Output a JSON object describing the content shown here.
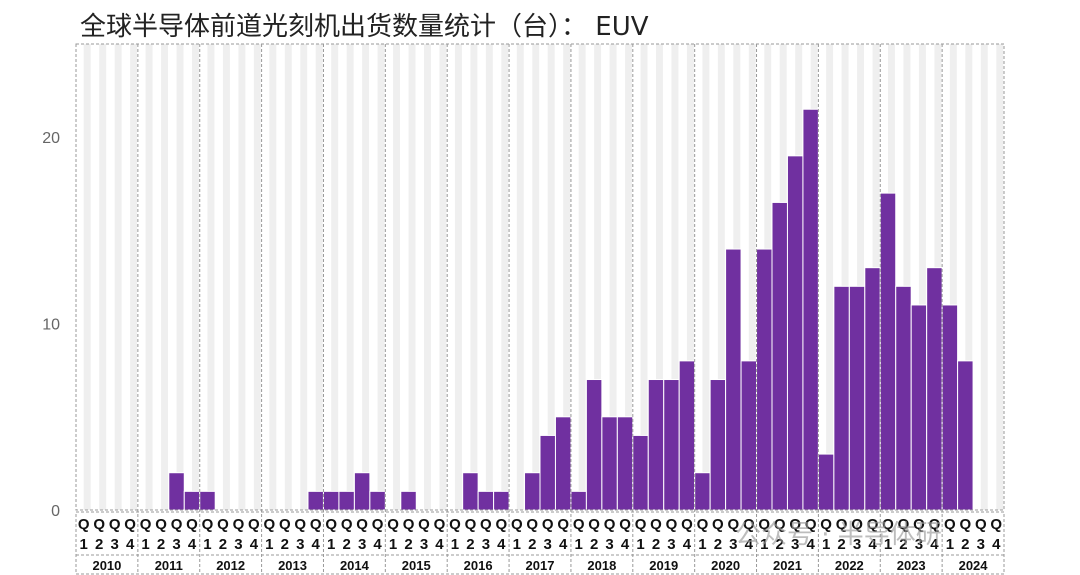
{
  "title": "全球半导体前道光刻机出货数量统计（台）： EUV",
  "watermark": "公众号 · 半导体研",
  "chart_data": {
    "type": "bar",
    "title": "全球半导体前道光刻机出货数量统计（台）： EUV",
    "xlabel": "",
    "ylabel": "",
    "ylim": [
      0,
      25
    ],
    "yticks": [
      0,
      10,
      20
    ],
    "grid": true,
    "bar_color": "#7030a0",
    "band_color": "#efefef",
    "years": [
      "2010",
      "2011",
      "2012",
      "2013",
      "2014",
      "2015",
      "2016",
      "2017",
      "2018",
      "2019",
      "2020",
      "2021",
      "2022",
      "2023",
      "2024"
    ],
    "quarter_labels": [
      "Q1",
      "Q2",
      "Q3",
      "Q4"
    ],
    "quarter_letter": "Q",
    "quarter_digits": [
      "1",
      "2",
      "3",
      "4"
    ],
    "series": [
      {
        "values": [
          0,
          0,
          0,
          0,
          0,
          0,
          2,
          1,
          1,
          0,
          0,
          0,
          0,
          0,
          0,
          1,
          1,
          1,
          2,
          1,
          0,
          1,
          0,
          0,
          0,
          2,
          1,
          1,
          0,
          2,
          4,
          5,
          1,
          7,
          5,
          5,
          4,
          7,
          7,
          8,
          2,
          7,
          14,
          8,
          14,
          16.5,
          19,
          21.5,
          3,
          12,
          12,
          13,
          17,
          12,
          11,
          13,
          11,
          8,
          0,
          0
        ]
      }
    ]
  }
}
